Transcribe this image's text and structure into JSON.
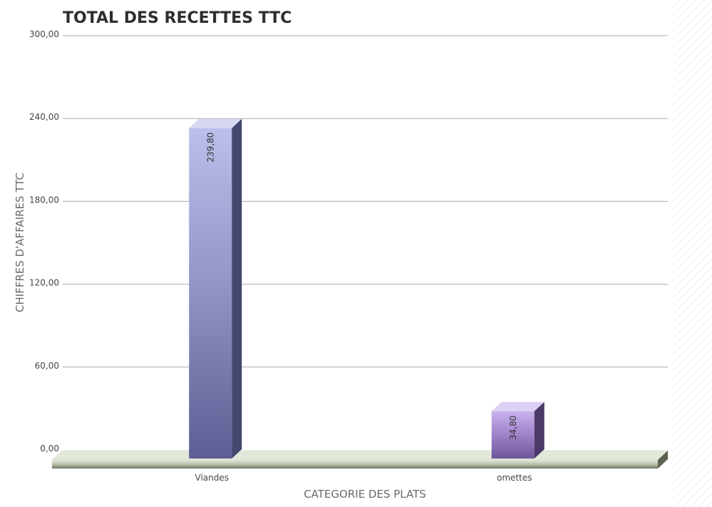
{
  "chart_data": {
    "type": "bar",
    "title": "TOTAL DES RECETTES TTC",
    "xlabel": "CATEGORIE DES PLATS",
    "ylabel": "CHIFFRES D'AFFAIRES TTC",
    "categories": [
      "Viandes",
      "omettes"
    ],
    "values": [
      239.8,
      34.8
    ],
    "value_labels": [
      "239,80",
      "34,80"
    ],
    "ylim": [
      0,
      300
    ],
    "yticks": [
      0,
      60,
      120,
      180,
      240,
      300
    ],
    "ytick_labels": [
      "0,00",
      "60,00",
      "120,00",
      "180,00",
      "240,00",
      "300,00"
    ],
    "grid": true,
    "legend": "none",
    "bar_colors": [
      {
        "light": "#bcbfea",
        "mid": "#8f92c4",
        "dark": "#5b5e92",
        "side": "#43466f",
        "top": "#d7d9f3"
      },
      {
        "light": "#c8b3ec",
        "mid": "#9f82c9",
        "dark": "#6d5697",
        "side": "#4a3a6a",
        "top": "#ddd0f5"
      }
    ],
    "floor_colors": {
      "light": "#e2e8da",
      "mid": "#b6bea8",
      "dark": "#6b7360",
      "side": "#5a6250"
    },
    "grid_color": "#a9a9a9"
  }
}
